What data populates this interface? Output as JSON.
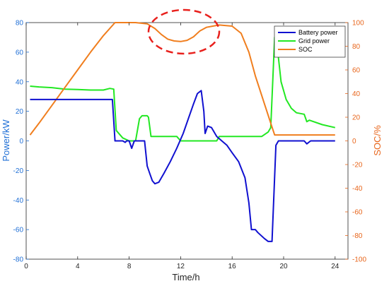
{
  "chart_data": {
    "type": "line",
    "xlabel": "Time/h",
    "ylabel_left": "Power/kW",
    "ylabel_right": "SOC/%",
    "xlim": [
      0,
      25
    ],
    "ylim_left": [
      -80,
      80
    ],
    "ylim_right": [
      -100,
      100
    ],
    "x_ticks": [
      "0",
      "4",
      "8",
      "12",
      "16",
      "20",
      "24"
    ],
    "y_left_ticks": [
      "80",
      "60",
      "40",
      "20",
      "0",
      "-20",
      "-40",
      "-60",
      "-80"
    ],
    "y_right_ticks": [
      "100",
      "80",
      "60",
      "40",
      "20",
      "0",
      "-20",
      "-40",
      "-60",
      "-80",
      "-100"
    ],
    "legend_position": "top-right",
    "grid": false,
    "annotation": "dashed red ellipse around SOC dip near 12 h",
    "series": [
      {
        "name": "Battery power",
        "axis": "left",
        "color": "#1010D0",
        "points": [
          [
            0.3,
            28
          ],
          [
            6.7,
            28
          ],
          [
            6.9,
            0
          ],
          [
            7.5,
            0
          ],
          [
            7.7,
            -1
          ],
          [
            7.8,
            0
          ],
          [
            8,
            0
          ],
          [
            8.2,
            -5
          ],
          [
            8.4,
            0
          ],
          [
            9,
            0
          ],
          [
            9.2,
            0
          ],
          [
            9.4,
            -17
          ],
          [
            9.6,
            -22
          ],
          [
            9.8,
            -27
          ],
          [
            10,
            -29
          ],
          [
            10.3,
            -28
          ],
          [
            10.7,
            -22
          ],
          [
            11.2,
            -14
          ],
          [
            11.7,
            -5
          ],
          [
            12.2,
            5
          ],
          [
            12.6,
            15
          ],
          [
            13,
            25
          ],
          [
            13.3,
            32
          ],
          [
            13.6,
            34
          ],
          [
            13.8,
            20
          ],
          [
            13.9,
            5
          ],
          [
            14.1,
            10
          ],
          [
            14.4,
            9
          ],
          [
            14.8,
            3
          ],
          [
            15.2,
            0
          ],
          [
            15.6,
            -3
          ],
          [
            16,
            -8
          ],
          [
            16.5,
            -14
          ],
          [
            17,
            -25
          ],
          [
            17.3,
            -42
          ],
          [
            17.5,
            -60
          ],
          [
            17.8,
            -60
          ],
          [
            18,
            -62
          ],
          [
            18.5,
            -66
          ],
          [
            18.8,
            -68
          ],
          [
            19.1,
            -68
          ],
          [
            19.4,
            -3
          ],
          [
            19.6,
            0
          ],
          [
            21.6,
            0
          ],
          [
            21.8,
            -2
          ],
          [
            22.1,
            0
          ],
          [
            24,
            0
          ]
        ]
      },
      {
        "name": "Grid power",
        "axis": "left",
        "color": "#22E822",
        "points": [
          [
            0.3,
            37
          ],
          [
            1,
            36.5
          ],
          [
            2,
            36
          ],
          [
            3,
            35
          ],
          [
            4,
            34.7
          ],
          [
            5,
            34.4
          ],
          [
            6,
            34.4
          ],
          [
            6.5,
            35.5
          ],
          [
            6.8,
            35
          ],
          [
            7,
            7
          ],
          [
            7.5,
            2
          ],
          [
            8,
            0
          ],
          [
            8.5,
            0
          ],
          [
            8.8,
            15
          ],
          [
            9,
            17
          ],
          [
            9.4,
            17
          ],
          [
            9.5,
            16
          ],
          [
            9.7,
            3
          ],
          [
            10,
            3
          ],
          [
            11,
            3
          ],
          [
            11.7,
            3
          ],
          [
            12,
            0
          ],
          [
            14.8,
            0
          ],
          [
            15,
            3
          ],
          [
            17,
            3
          ],
          [
            18.3,
            3
          ],
          [
            18.8,
            6
          ],
          [
            19,
            9
          ],
          [
            19.3,
            70
          ],
          [
            19.5,
            64
          ],
          [
            19.8,
            40
          ],
          [
            20.2,
            28
          ],
          [
            20.6,
            22
          ],
          [
            21,
            19
          ],
          [
            21.6,
            18
          ],
          [
            21.8,
            13
          ],
          [
            22,
            14
          ],
          [
            23,
            11
          ],
          [
            24,
            9
          ]
        ]
      },
      {
        "name": "SOC",
        "axis": "right",
        "color": "#F07E1E",
        "points": [
          [
            0.3,
            5
          ],
          [
            1,
            15
          ],
          [
            2,
            30
          ],
          [
            3,
            45
          ],
          [
            4,
            60
          ],
          [
            5,
            75
          ],
          [
            6,
            89
          ],
          [
            6.9,
            100
          ],
          [
            8.5,
            100
          ],
          [
            9.4,
            99
          ],
          [
            10,
            95
          ],
          [
            10.5,
            90
          ],
          [
            11,
            86
          ],
          [
            11.5,
            84.5
          ],
          [
            12,
            84
          ],
          [
            12.5,
            85
          ],
          [
            13,
            88
          ],
          [
            13.5,
            93
          ],
          [
            14,
            96
          ],
          [
            14.5,
            97
          ],
          [
            15,
            98
          ],
          [
            16,
            97
          ],
          [
            16.7,
            91
          ],
          [
            17.3,
            75
          ],
          [
            17.8,
            55
          ],
          [
            18.4,
            35
          ],
          [
            19,
            15
          ],
          [
            19.3,
            5
          ],
          [
            19.6,
            5
          ],
          [
            24,
            5
          ]
        ]
      }
    ]
  }
}
